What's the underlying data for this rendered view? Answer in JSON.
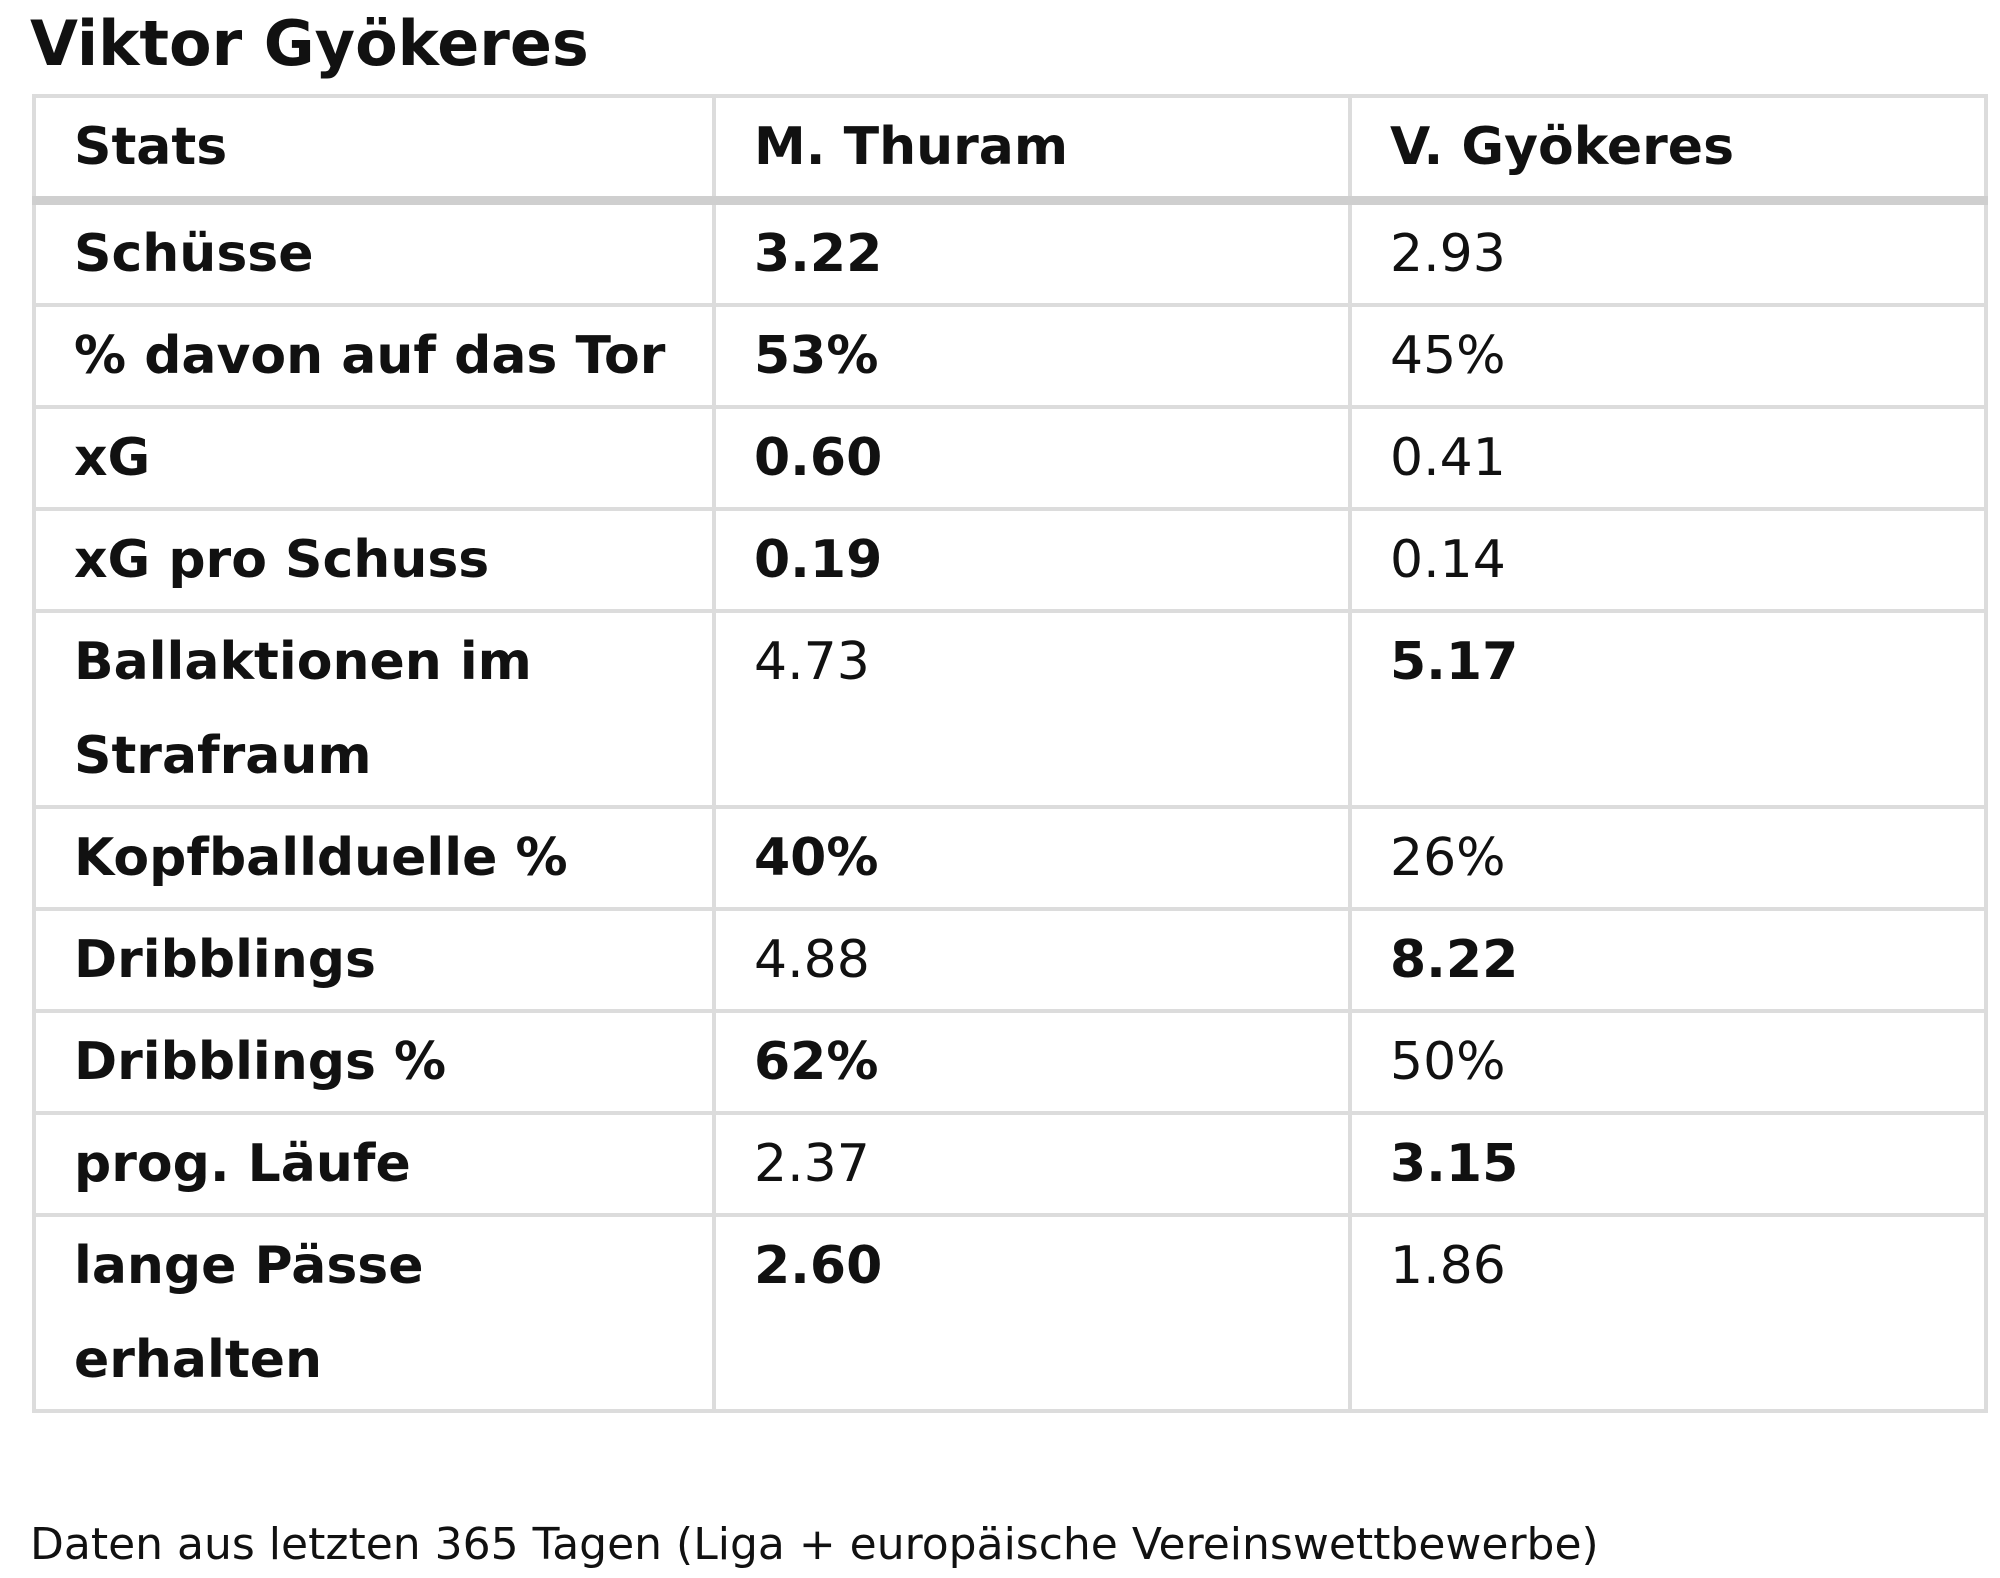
{
  "title": "Viktor Gyökeres",
  "table": {
    "header": [
      "Stats",
      "M. Thuram",
      "V. Gyökeres"
    ],
    "rows": [
      {
        "cells": [
          "Schüsse",
          "3.22",
          "2.93"
        ],
        "bold": 1
      },
      {
        "cells": [
          "% davon auf das Tor",
          "53%",
          "45%"
        ],
        "bold": 1
      },
      {
        "cells": [
          "xG",
          "0.60",
          "0.41"
        ],
        "bold": 1
      },
      {
        "cells": [
          "xG pro Schuss",
          "0.19",
          "0.14"
        ],
        "bold": 1
      },
      {
        "cells": [
          "Ballaktionen im Strafraum",
          "4.73",
          "5.17"
        ],
        "bold": 2
      },
      {
        "cells": [
          "Kopfballduelle %",
          "40%",
          "26%"
        ],
        "bold": 1
      },
      {
        "cells": [
          "Dribblings",
          "4.88",
          "8.22"
        ],
        "bold": 2
      },
      {
        "cells": [
          "Dribblings %",
          "62%",
          "50%"
        ],
        "bold": 1
      },
      {
        "cells": [
          "prog. Läufe",
          "2.37",
          "3.15"
        ],
        "bold": 2
      },
      {
        "cells": [
          "lange Pässe erhalten",
          "2.60",
          "1.86"
        ],
        "bold": 1
      }
    ]
  },
  "footer": "Daten aus letzten 365 Tagen (Liga + europäische Vereinswettbewerbe)"
}
